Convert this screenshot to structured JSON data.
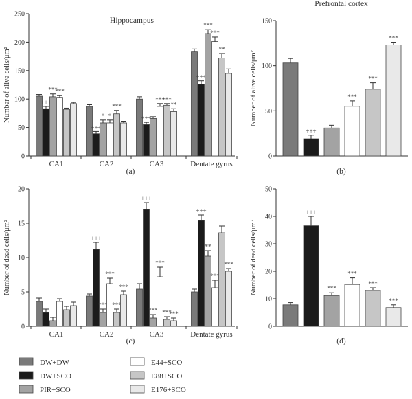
{
  "series_styles": [
    {
      "name": "DW+DW",
      "color": "#7a7a7a"
    },
    {
      "name": "DW+SCO",
      "color": "#1b1b1b"
    },
    {
      "name": "PIR+SCO",
      "color": "#a3a3a3"
    },
    {
      "name": "E44+SCO",
      "color": "#ffffff"
    },
    {
      "name": "E88+SCO",
      "color": "#c6c6c6"
    },
    {
      "name": "E176+SCO",
      "color": "#e9e9e9"
    }
  ],
  "legend": {
    "items": [
      "DW+DW",
      "DW+SCO",
      "PIR+SCO",
      "E44+SCO",
      "E88+SCO",
      "E176+SCO"
    ]
  },
  "chart_data": [
    {
      "id": "a",
      "type": "bar",
      "panel_label": "(a)",
      "title": "Hippocampus",
      "ylabel": "Number of alive cells/μm²",
      "ylim": [
        0,
        250
      ],
      "yticks": [
        0,
        50,
        100,
        150,
        200,
        250
      ],
      "categories": [
        "CA1",
        "CA2",
        "CA3",
        "Dentate gyrus"
      ],
      "series": [
        {
          "name": "DW+DW",
          "values": [
            105,
            87,
            100,
            184
          ],
          "errors": [
            3,
            3,
            4,
            4
          ],
          "sig": [
            "",
            "",
            "",
            ""
          ]
        },
        {
          "name": "DW+SCO",
          "values": [
            83,
            39,
            55,
            126
          ],
          "errors": [
            4,
            4,
            4,
            6
          ],
          "sig": [
            "+++",
            "+++",
            "+++",
            "+++"
          ]
        },
        {
          "name": "PIR+SCO",
          "values": [
            104,
            58,
            66,
            215
          ],
          "errors": [
            5,
            5,
            3,
            7
          ],
          "sig": [
            "***",
            "*",
            "",
            "***"
          ]
        },
        {
          "name": "E44+SCO",
          "values": [
            103,
            58,
            87,
            201
          ],
          "errors": [
            3,
            5,
            5,
            8
          ],
          "sig": [
            "***",
            "*",
            "***",
            "***"
          ]
        },
        {
          "name": "E88+SCO",
          "values": [
            82,
            74,
            89,
            172
          ],
          "errors": [
            2,
            6,
            3,
            8
          ],
          "sig": [
            "",
            "***",
            "***",
            "**"
          ]
        },
        {
          "name": "E176+SCO",
          "values": [
            92,
            58,
            78,
            145
          ],
          "errors": [
            2,
            3,
            5,
            8
          ],
          "sig": [
            "",
            "",
            "**",
            ""
          ]
        }
      ]
    },
    {
      "id": "b",
      "type": "bar",
      "panel_label": "(b)",
      "title": "Prefrontal cortex",
      "ylabel": "Number of alive cells/μm²",
      "ylim": [
        0,
        150
      ],
      "yticks": [
        0,
        50,
        100,
        150
      ],
      "categories": [
        ""
      ],
      "series": [
        {
          "name": "DW+DW",
          "values": [
            103
          ],
          "errors": [
            5
          ],
          "sig": [
            ""
          ]
        },
        {
          "name": "DW+SCO",
          "values": [
            19
          ],
          "errors": [
            4
          ],
          "sig": [
            "+++"
          ]
        },
        {
          "name": "PIR+SCO",
          "values": [
            31
          ],
          "errors": [
            3
          ],
          "sig": [
            ""
          ]
        },
        {
          "name": "E44+SCO",
          "values": [
            55
          ],
          "errors": [
            6
          ],
          "sig": [
            "***"
          ]
        },
        {
          "name": "E88+SCO",
          "values": [
            74
          ],
          "errors": [
            7
          ],
          "sig": [
            "***"
          ]
        },
        {
          "name": "E176+SCO",
          "values": [
            123
          ],
          "errors": [
            3
          ],
          "sig": [
            "***"
          ]
        }
      ]
    },
    {
      "id": "c",
      "type": "bar",
      "panel_label": "(c)",
      "title": "",
      "ylabel": "Number of dead cells/μm²",
      "ylim": [
        0,
        20
      ],
      "yticks": [
        0,
        5,
        10,
        15,
        20
      ],
      "categories": [
        "CA1",
        "CA2",
        "CA3",
        "Dentate gyrus"
      ],
      "series": [
        {
          "name": "DW+DW",
          "values": [
            3.6,
            4.4,
            5.4,
            5.0
          ],
          "errors": [
            0.5,
            0.3,
            0.8,
            0.4
          ],
          "sig": [
            "",
            "",
            "",
            ""
          ]
        },
        {
          "name": "DW+SCO",
          "values": [
            2.0,
            11.2,
            17.0,
            15.4
          ],
          "errors": [
            0.5,
            1.0,
            1.0,
            0.8
          ],
          "sig": [
            "",
            "+++",
            "+++",
            "+++"
          ]
        },
        {
          "name": "PIR+SCO",
          "values": [
            0.8,
            2.0,
            1.2,
            10.2
          ],
          "errors": [
            0.5,
            0.5,
            0.5,
            0.8
          ],
          "sig": [
            "",
            "***",
            "***",
            "**"
          ]
        },
        {
          "name": "E44+SCO",
          "values": [
            3.6,
            6.2,
            7.2,
            5.6
          ],
          "errors": [
            0.4,
            0.8,
            1.4,
            1.1
          ],
          "sig": [
            "",
            "***",
            "***",
            "***"
          ]
        },
        {
          "name": "E88+SCO",
          "values": [
            2.4,
            2.0,
            1.0,
            13.6
          ],
          "errors": [
            0.5,
            0.5,
            0.4,
            1.0
          ],
          "sig": [
            "",
            "***",
            "***",
            ""
          ]
        },
        {
          "name": "E176+SCO",
          "values": [
            3.0,
            4.6,
            0.8,
            8.0
          ],
          "errors": [
            0.5,
            0.5,
            0.4,
            0.4
          ],
          "sig": [
            "",
            "***",
            "***",
            "***"
          ]
        }
      ]
    },
    {
      "id": "d",
      "type": "bar",
      "panel_label": "(d)",
      "title": "",
      "ylabel": "Number of dead cells/μm²",
      "ylim": [
        0,
        50
      ],
      "yticks": [
        0,
        10,
        20,
        30,
        40,
        50
      ],
      "categories": [
        ""
      ],
      "series": [
        {
          "name": "DW+DW",
          "values": [
            7.8
          ],
          "errors": [
            0.8
          ],
          "sig": [
            ""
          ]
        },
        {
          "name": "DW+SCO",
          "values": [
            36.6
          ],
          "errors": [
            3.4
          ],
          "sig": [
            "+++"
          ]
        },
        {
          "name": "PIR+SCO",
          "values": [
            11.2
          ],
          "errors": [
            1.0
          ],
          "sig": [
            "***"
          ]
        },
        {
          "name": "E44+SCO",
          "values": [
            15.2
          ],
          "errors": [
            2.4
          ],
          "sig": [
            "***"
          ]
        },
        {
          "name": "E88+SCO",
          "values": [
            13.0
          ],
          "errors": [
            1.0
          ],
          "sig": [
            "***"
          ]
        },
        {
          "name": "E176+SCO",
          "values": [
            6.8
          ],
          "errors": [
            1.0
          ],
          "sig": [
            "***"
          ]
        }
      ]
    }
  ]
}
